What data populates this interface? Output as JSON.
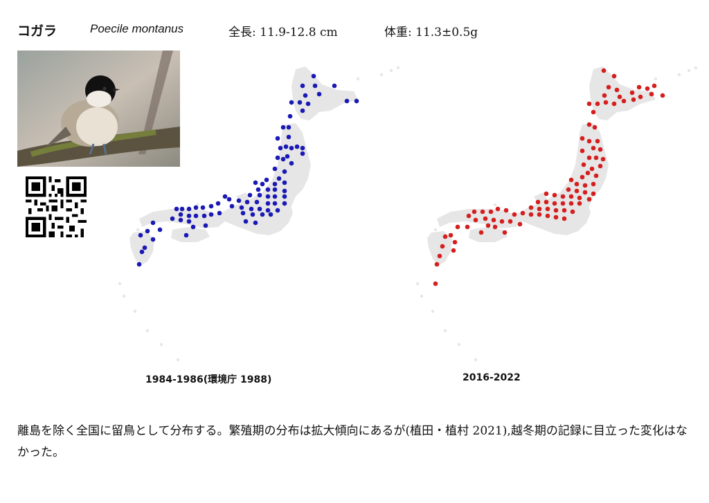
{
  "header": {
    "species_name": "コガラ",
    "scientific_name": "Poecile montanus",
    "length": "全長: 11.9-12.8 cm",
    "weight": "体重: 11.3±0.5g"
  },
  "maps": {
    "left": {
      "caption": "1984-1986(環境庁 1988)",
      "dot_color": "#1a19b5"
    },
    "right": {
      "caption": "2016-2022",
      "dot_color": "#d61e1e"
    },
    "land_color": "#e6e6e6"
  },
  "description": "離島を除く全国に留鳥として分布する。繁殖期の分布は拡大傾向にあるが(植田・植村 2021),越冬期の記録に目立った変化はなかった。",
  "icons": {
    "photo": "bird-photo",
    "qr": "qr-code"
  }
}
